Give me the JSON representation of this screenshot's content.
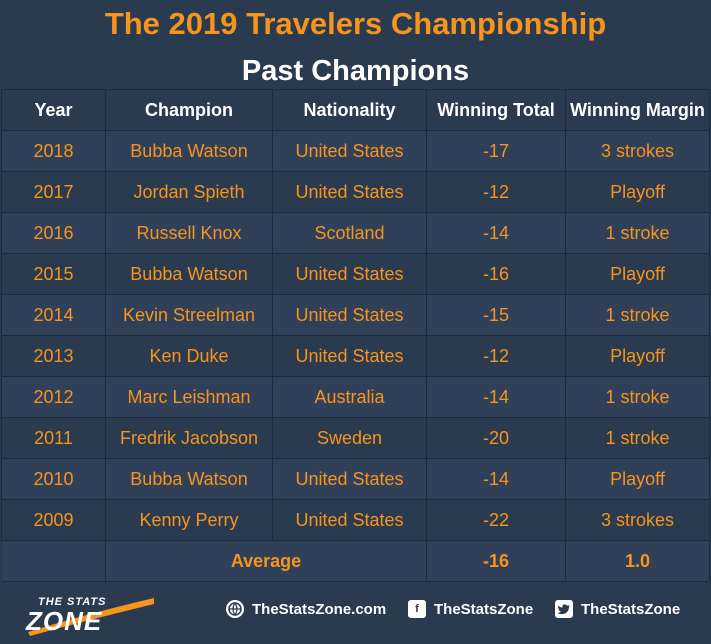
{
  "title": "The 2019 Travelers Championship",
  "subtitle": "Past Champions",
  "headers": [
    "Year",
    "Champion",
    "Nationality",
    "Winning Total",
    "Winning Margin"
  ],
  "rows": [
    [
      "2018",
      "Bubba Watson",
      "United States",
      "-17",
      "3 strokes"
    ],
    [
      "2017",
      "Jordan Spieth",
      "United States",
      "-12",
      "Playoff"
    ],
    [
      "2016",
      "Russell Knox",
      "Scotland",
      "-14",
      "1 stroke"
    ],
    [
      "2015",
      "Bubba Watson",
      "United States",
      "-16",
      "Playoff"
    ],
    [
      "2014",
      "Kevin Streelman",
      "United States",
      "-15",
      "1 stroke"
    ],
    [
      "2013",
      "Ken Duke",
      "United States",
      "-12",
      "Playoff"
    ],
    [
      "2012",
      "Marc Leishman",
      "Australia",
      "-14",
      "1 stroke"
    ],
    [
      "2011",
      "Fredrik Jacobson",
      "Sweden",
      "-20",
      "1 stroke"
    ],
    [
      "2010",
      "Bubba Watson",
      "United States",
      "-14",
      "Playoff"
    ],
    [
      "2009",
      "Kenny Perry",
      "United States",
      "-22",
      "3 strokes"
    ]
  ],
  "average": {
    "label": "Average",
    "total": "-16",
    "margin": "1.0"
  },
  "footer": {
    "logo_top": "THE STATS",
    "logo_main": "ZONE",
    "website": "TheStatsZone.com",
    "facebook": "TheStatsZone",
    "twitter": "TheStatsZone"
  },
  "colors": {
    "background": "#2a3a4f",
    "accent": "#f7941d",
    "header_text": "#ffffff"
  }
}
